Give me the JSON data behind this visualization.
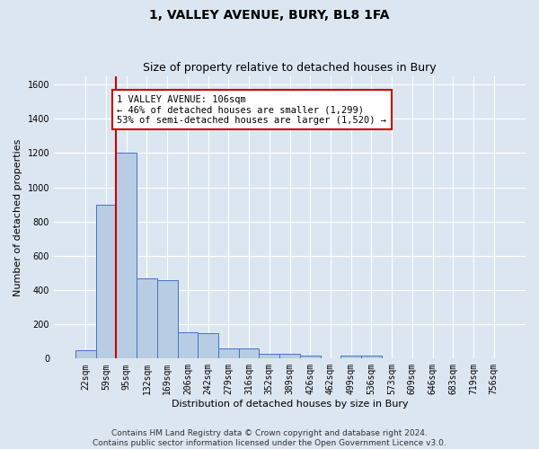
{
  "title": "1, VALLEY AVENUE, BURY, BL8 1FA",
  "subtitle": "Size of property relative to detached houses in Bury",
  "xlabel": "Distribution of detached houses by size in Bury",
  "ylabel": "Number of detached properties",
  "bin_labels": [
    "22sqm",
    "59sqm",
    "95sqm",
    "132sqm",
    "169sqm",
    "206sqm",
    "242sqm",
    "279sqm",
    "316sqm",
    "352sqm",
    "389sqm",
    "426sqm",
    "462sqm",
    "499sqm",
    "536sqm",
    "573sqm",
    "609sqm",
    "646sqm",
    "683sqm",
    "719sqm",
    "756sqm"
  ],
  "bar_heights": [
    50,
    900,
    1200,
    470,
    460,
    155,
    150,
    60,
    58,
    28,
    28,
    18,
    0,
    18,
    18,
    0,
    0,
    0,
    0,
    0,
    0
  ],
  "bar_color": "#b8cce4",
  "bar_edge_color": "#4472c4",
  "background_color": "#dce6f1",
  "grid_color": "#ffffff",
  "ylim": [
    0,
    1650
  ],
  "yticks": [
    0,
    200,
    400,
    600,
    800,
    1000,
    1200,
    1400,
    1600
  ],
  "vline_x_index": 1.5,
  "annotation_text": "1 VALLEY AVENUE: 106sqm\n← 46% of detached houses are smaller (1,299)\n53% of semi-detached houses are larger (1,520) →",
  "annotation_box_color": "#ffffff",
  "annotation_box_edge": "#cc0000",
  "vline_color": "#cc0000",
  "footer_text": "Contains HM Land Registry data © Crown copyright and database right 2024.\nContains public sector information licensed under the Open Government Licence v3.0.",
  "title_fontsize": 10,
  "subtitle_fontsize": 9,
  "axis_label_fontsize": 8,
  "tick_fontsize": 7,
  "annotation_fontsize": 7.5,
  "footer_fontsize": 6.5
}
